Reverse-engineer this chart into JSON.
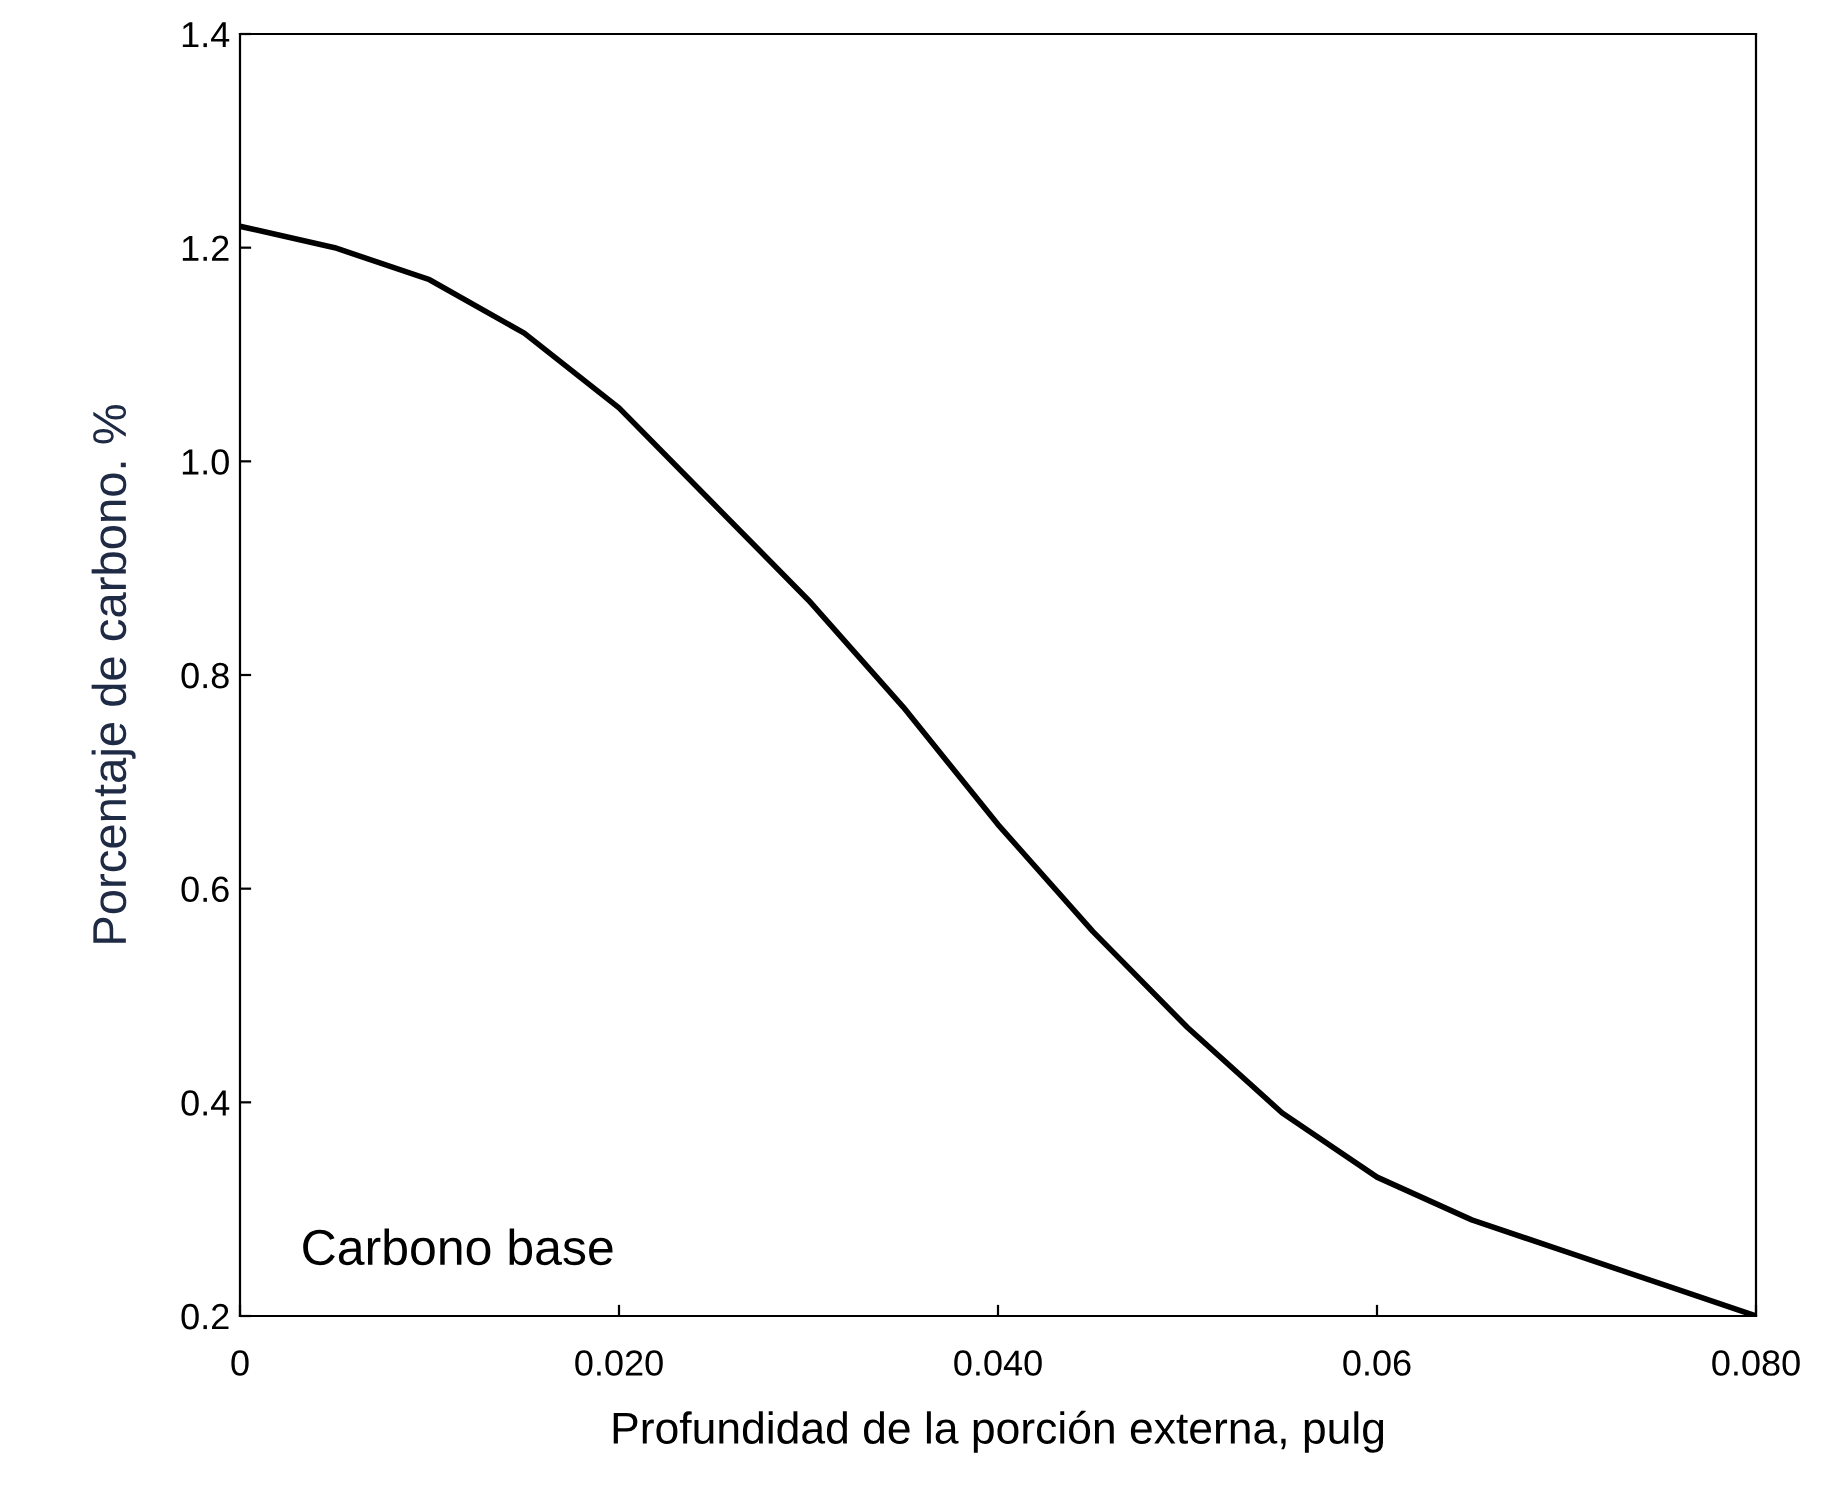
{
  "chart_data": {
    "type": "line",
    "xlabel": "Profundidad de la porción externa, pulg",
    "ylabel": "Porcentaje de carbono. %",
    "x": [
      0,
      0.005,
      0.01,
      0.015,
      0.02,
      0.025,
      0.03,
      0.035,
      0.04,
      0.045,
      0.05,
      0.055,
      0.06,
      0.065,
      0.07,
      0.075,
      0.08
    ],
    "series": [
      {
        "color": "#000000",
        "values": [
          1.22,
          1.2,
          1.17,
          1.12,
          1.05,
          0.96,
          0.87,
          0.77,
          0.66,
          0.56,
          0.47,
          0.39,
          0.33,
          0.29,
          0.26,
          0.23,
          0.2
        ]
      }
    ],
    "xlim": [
      0,
      0.08
    ],
    "ylim": [
      0.2,
      1.4
    ],
    "xticks": [
      0,
      {
        "value": 0.02,
        "label": "0.020"
      },
      {
        "value": 0.04,
        "label": "0.040"
      },
      {
        "value": 0.06,
        "label": "0.06"
      },
      {
        "value": 0.08,
        "label": "0.080"
      }
    ],
    "yticks": [
      0.2,
      0.4,
      0.6,
      0.8,
      {
        "value": 1.0,
        "label": "1.0"
      },
      1.2,
      1.4
    ],
    "annotations": [
      "Carbono base"
    ],
    "grid": false,
    "legend": false,
    "marker": "none",
    "line_style": "solid"
  }
}
